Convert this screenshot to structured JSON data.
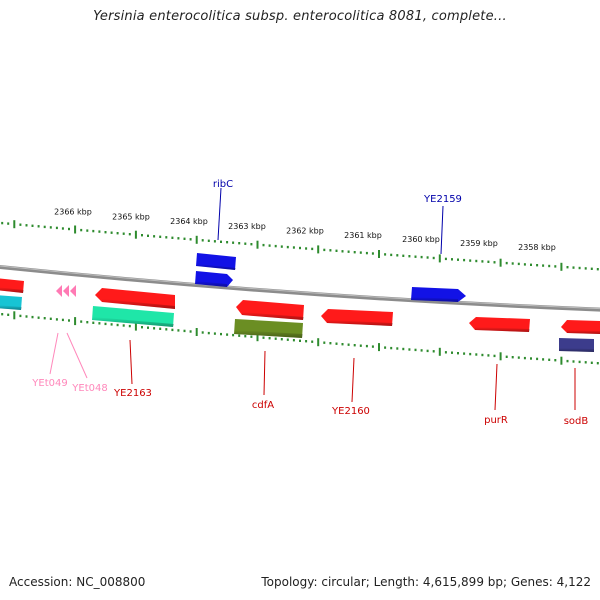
{
  "title": "Yersinia enterocolitica subsp. enterocolitica 8081, complete...",
  "footer": {
    "accession": "Accession: NC_008800",
    "topology": "Topology: circular; Length: 4,615,899 bp; Genes: 4,122"
  },
  "colors": {
    "backbone": "#8c8c8c",
    "tick": "#2e8b2e",
    "forward_gene": "#ff1a1a",
    "reverse_gene": "#1212e6",
    "rna_cyan": "#17c4d4",
    "gene_teal": "#1fe6a8",
    "gene_olive": "#6b8e23",
    "gene_navy": "#3c3c8c",
    "trna_pink": "#ff7ab4",
    "label_red": "#cc0000",
    "label_blue": "#0000aa",
    "label_pink": "#ff88bb"
  },
  "scale": {
    "unit": "kbp",
    "ticks": [
      "2366 kbp",
      "2365 kbp",
      "2364 kbp",
      "2363 kbp",
      "2362 kbp",
      "2361 kbp",
      "2360 kbp",
      "2359 kbp",
      "2358 kbp"
    ]
  },
  "gene_labels": {
    "ribC": "ribC",
    "YE2159": "YE2159",
    "YEt049": "YEt049",
    "YEt048": "YEt048",
    "YE2163": "YE2163",
    "cdfA": "cdfA",
    "YE2160": "YE2160",
    "purR": "purR",
    "sodB": "sodB"
  }
}
